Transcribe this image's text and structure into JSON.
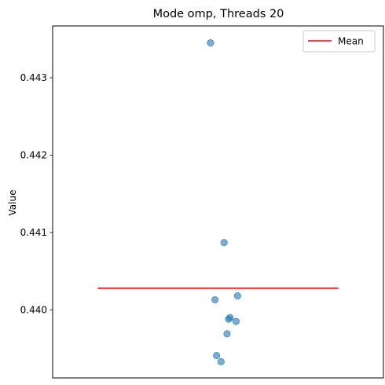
{
  "chart_data": {
    "type": "scatter",
    "title": "Mode omp, Threads 20",
    "xlabel": "",
    "ylabel": "Value",
    "ylim": [
      0.43912,
      0.44367
    ],
    "yticks": [
      0.44,
      0.441,
      0.442,
      0.443
    ],
    "ytick_labels": [
      "0.440",
      "0.441",
      "0.442",
      "0.443"
    ],
    "grid": false,
    "legend": {
      "placement": "top-right",
      "entries": [
        {
          "label": "Mean",
          "color": "#ff0000",
          "kind": "line"
        }
      ]
    },
    "points_color": "#1f77b4",
    "points": [
      {
        "jitter": -0.05,
        "y": 0.44345
      },
      {
        "jitter": 0.04,
        "y": 0.44087
      },
      {
        "jitter": 0.13,
        "y": 0.44018
      },
      {
        "jitter": -0.02,
        "y": 0.44013
      },
      {
        "jitter": 0.08,
        "y": 0.4399
      },
      {
        "jitter": 0.07,
        "y": 0.43988
      },
      {
        "jitter": 0.12,
        "y": 0.43985
      },
      {
        "jitter": 0.06,
        "y": 0.43969
      },
      {
        "jitter": -0.01,
        "y": 0.43941
      },
      {
        "jitter": 0.02,
        "y": 0.43933
      }
    ],
    "mean": {
      "value": 0.44028,
      "color": "#ff0000",
      "x_from": -0.8,
      "x_to": 0.8
    }
  }
}
